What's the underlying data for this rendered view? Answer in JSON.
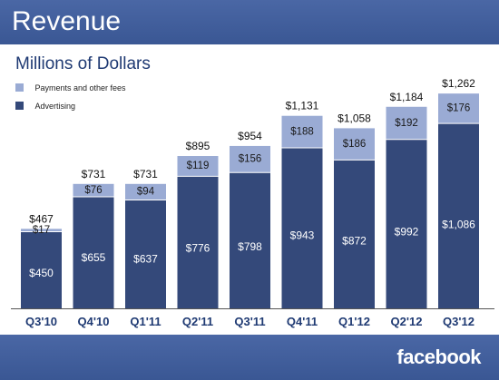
{
  "header": {
    "title": "Revenue"
  },
  "footer": {
    "brand": "facebook"
  },
  "chart_data": {
    "type": "bar",
    "stacked": true,
    "subtitle": "Millions of Dollars",
    "categories": [
      "Q3'10",
      "Q4'10",
      "Q1'11",
      "Q2'11",
      "Q3'11",
      "Q4'11",
      "Q1'12",
      "Q2'12",
      "Q3'12"
    ],
    "series": [
      {
        "name": "Advertising",
        "values": [
          450,
          655,
          637,
          776,
          798,
          943,
          872,
          992,
          1086
        ],
        "color": "#34497a"
      },
      {
        "name": "Payments and other fees",
        "values": [
          17,
          76,
          94,
          119,
          156,
          188,
          186,
          192,
          176
        ],
        "color": "#9aabd4"
      }
    ],
    "totals": [
      467,
      731,
      731,
      895,
      954,
      1131,
      1058,
      1184,
      1262
    ],
    "value_labels": {
      "Advertising": [
        "$450",
        "$655",
        "$637",
        "$776",
        "$798",
        "$943",
        "$872",
        "$992",
        "$1,086"
      ],
      "Payments and other fees": [
        "$17",
        "$76",
        "$94",
        "$119",
        "$156",
        "$188",
        "$186",
        "$192",
        "$176"
      ]
    },
    "total_labels": [
      "$467",
      "$731",
      "$731",
      "$895",
      "$954",
      "$1,131",
      "$1,058",
      "$1,184",
      "$1,262"
    ],
    "legend": [
      "Payments and other fees",
      "Advertising"
    ],
    "legend_position": "top-left",
    "ylim": [
      0,
      1300
    ],
    "grid": false
  }
}
